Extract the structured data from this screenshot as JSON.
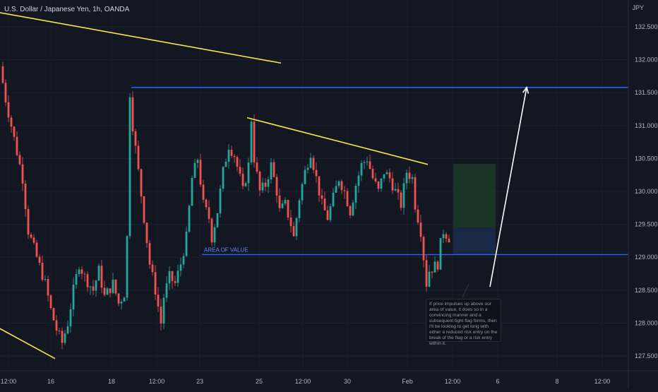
{
  "header": {
    "title": "U.S. Dollar / Japanese Yen, 1h, OANDA",
    "currency": "JPY"
  },
  "annotations": {
    "area_label": "AREA OF VALUE",
    "note": "If price impulses up above our area of value, it does so in a convincing manner and a subsequent tight flag forms, then I'll be looking to get long with either a reduced risk entry on the break of the flag or a risk entry within it."
  },
  "colors": {
    "background": "#131722",
    "up_candle": "#26a69a",
    "down_candle": "#ef5350",
    "level_line": "#2962ff",
    "trend_line": "#f7e64a",
    "target_zone": "#1b3a24",
    "stop_zone": "#1b2b4a",
    "arrow": "#ffffff"
  },
  "chart_data": {
    "type": "candlestick",
    "title": "U.S. Dollar / Japanese Yen, 1h, OANDA",
    "y_axis_position": "right",
    "ylim": [
      127.25,
      132.75
    ],
    "y_ticks": [
      "132.500",
      "132.000",
      "131.500",
      "131.000",
      "130.500",
      "130.000",
      "129.500",
      "129.000",
      "128.500",
      "128.000",
      "127.500"
    ],
    "x_ticks": [
      "12:00",
      "16",
      "18",
      "12:00",
      "23",
      "25",
      "12:00",
      "30",
      "Feb",
      "12:00",
      "6",
      "8",
      "12:00"
    ],
    "grid": true,
    "price_path": [
      [
        0,
        131.9
      ],
      [
        2,
        131.4
      ],
      [
        5,
        130.8
      ],
      [
        8,
        130.2
      ],
      [
        10,
        129.4
      ],
      [
        13,
        129.0
      ],
      [
        16,
        128.6
      ],
      [
        18,
        128.2
      ],
      [
        20,
        127.9
      ],
      [
        22,
        127.7
      ],
      [
        24,
        128.0
      ],
      [
        26,
        128.5
      ],
      [
        28,
        128.9
      ],
      [
        30,
        128.7
      ],
      [
        33,
        128.5
      ],
      [
        35,
        128.8
      ],
      [
        37,
        128.4
      ],
      [
        40,
        128.6
      ],
      [
        42,
        128.3
      ],
      [
        44,
        128.45
      ],
      [
        45,
        129.3
      ],
      [
        46,
        131.5
      ],
      [
        47,
        131.0
      ],
      [
        49,
        130.3
      ],
      [
        51,
        129.6
      ],
      [
        53,
        128.9
      ],
      [
        55,
        128.5
      ],
      [
        57,
        128.0
      ],
      [
        58,
        128.4
      ],
      [
        60,
        128.7
      ],
      [
        62,
        128.6
      ],
      [
        64,
        128.9
      ],
      [
        66,
        129.3
      ],
      [
        68,
        130.2
      ],
      [
        70,
        130.5
      ],
      [
        72,
        129.8
      ],
      [
        74,
        129.6
      ],
      [
        75,
        129.3
      ],
      [
        77,
        129.7
      ],
      [
        79,
        130.3
      ],
      [
        81,
        130.7
      ],
      [
        83,
        130.55
      ],
      [
        85,
        130.2
      ],
      [
        86,
        130.0
      ],
      [
        88,
        130.4
      ],
      [
        89,
        131.1
      ],
      [
        90,
        130.5
      ],
      [
        92,
        130.0
      ],
      [
        94,
        130.1
      ],
      [
        96,
        130.4
      ],
      [
        98,
        130.0
      ],
      [
        99,
        129.7
      ],
      [
        101,
        129.8
      ],
      [
        103,
        129.5
      ],
      [
        104,
        129.3
      ],
      [
        106,
        129.9
      ],
      [
        108,
        130.3
      ],
      [
        110,
        130.6
      ],
      [
        112,
        130.2
      ],
      [
        114,
        129.8
      ],
      [
        116,
        129.6
      ],
      [
        118,
        129.9
      ],
      [
        120,
        130.2
      ],
      [
        122,
        130.0
      ],
      [
        124,
        129.7
      ],
      [
        126,
        130.1
      ],
      [
        128,
        130.4
      ],
      [
        130,
        130.5
      ],
      [
        132,
        130.2
      ],
      [
        134,
        130.0
      ],
      [
        136,
        130.3
      ],
      [
        138,
        130.2
      ],
      [
        140,
        130.0
      ],
      [
        142,
        129.8
      ],
      [
        144,
        130.3
      ],
      [
        146,
        130.2
      ],
      [
        147,
        129.8
      ],
      [
        149,
        129.4
      ],
      [
        150,
        129.0
      ],
      [
        151,
        128.6
      ],
      [
        152,
        128.8
      ],
      [
        155,
        128.9
      ],
      [
        156,
        129.2
      ],
      [
        157,
        129.4
      ],
      [
        159,
        129.3
      ]
    ],
    "horizontal_levels": [
      {
        "price": 131.58,
        "from_x": 46
      },
      {
        "price": 129.04,
        "from_x": 71,
        "label": "AREA OF VALUE"
      }
    ],
    "trend_lines": [
      {
        "points": [
          [
            -5,
            132.75
          ],
          [
            99,
            131.95
          ]
        ]
      },
      {
        "points": [
          [
            87,
            131.12
          ],
          [
            151,
            130.41
          ]
        ]
      },
      {
        "points": [
          [
            -2,
            127.95
          ],
          [
            19,
            127.46
          ]
        ]
      }
    ],
    "position_zones": [
      {
        "type": "target",
        "x": [
          160,
          175
        ],
        "price": [
          129.45,
          130.42
        ]
      },
      {
        "type": "stop",
        "x": [
          160,
          175
        ],
        "price": [
          129.04,
          129.45
        ]
      }
    ],
    "projection_arrow": {
      "from": [
        173,
        128.55
      ],
      "to": [
        186,
        131.58
      ]
    }
  }
}
